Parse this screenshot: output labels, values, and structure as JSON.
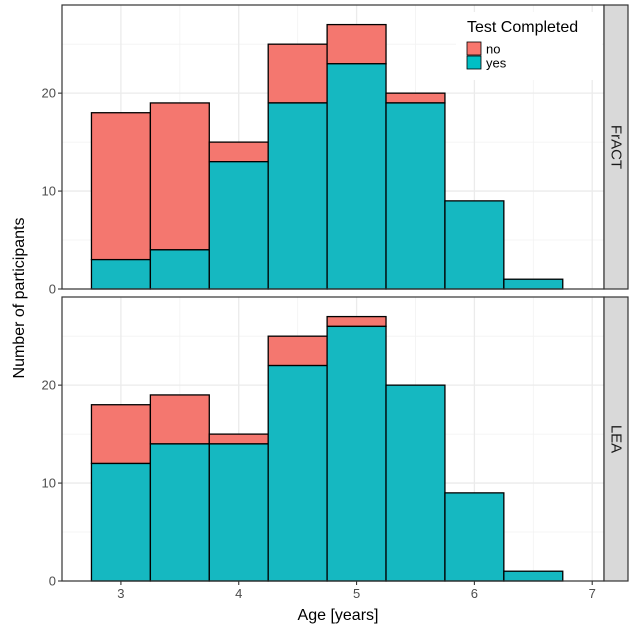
{
  "chart_data": {
    "type": "bar",
    "stacked": true,
    "xlabel": "Age [years]",
    "ylabel": "Number of participants",
    "xlim": [
      2.5,
      7.1
    ],
    "ylim": [
      0,
      29
    ],
    "x_ticks": [
      "3",
      "4",
      "5",
      "6",
      "7"
    ],
    "y_ticks": [
      "0",
      "10",
      "20"
    ],
    "bin_width": 0.5,
    "bins": [
      3,
      3.5,
      4,
      4.5,
      5,
      5.5,
      6,
      6.5
    ],
    "legend": {
      "title": "Test Completed",
      "position": "top-right inside",
      "entries": [
        {
          "label": "no",
          "color": "#F8766D"
        },
        {
          "label": "yes",
          "color": "#00BFC4"
        }
      ]
    },
    "grid": true,
    "panels": [
      {
        "label": "FrACT",
        "series": [
          {
            "name": "yes",
            "color": "#15B8C1",
            "values": [
              3,
              4,
              13,
              19,
              23,
              19,
              9,
              1
            ]
          },
          {
            "name": "no",
            "color": "#F4776F",
            "values": [
              15,
              15,
              2,
              6,
              4,
              1,
              0,
              0
            ]
          }
        ]
      },
      {
        "label": "LEA",
        "series": [
          {
            "name": "yes",
            "color": "#15B8C1",
            "values": [
              12,
              14,
              14,
              22,
              26,
              20,
              9,
              1
            ]
          },
          {
            "name": "no",
            "color": "#F4776F",
            "values": [
              6,
              5,
              1,
              3,
              1,
              0,
              0,
              0
            ]
          }
        ]
      }
    ]
  }
}
